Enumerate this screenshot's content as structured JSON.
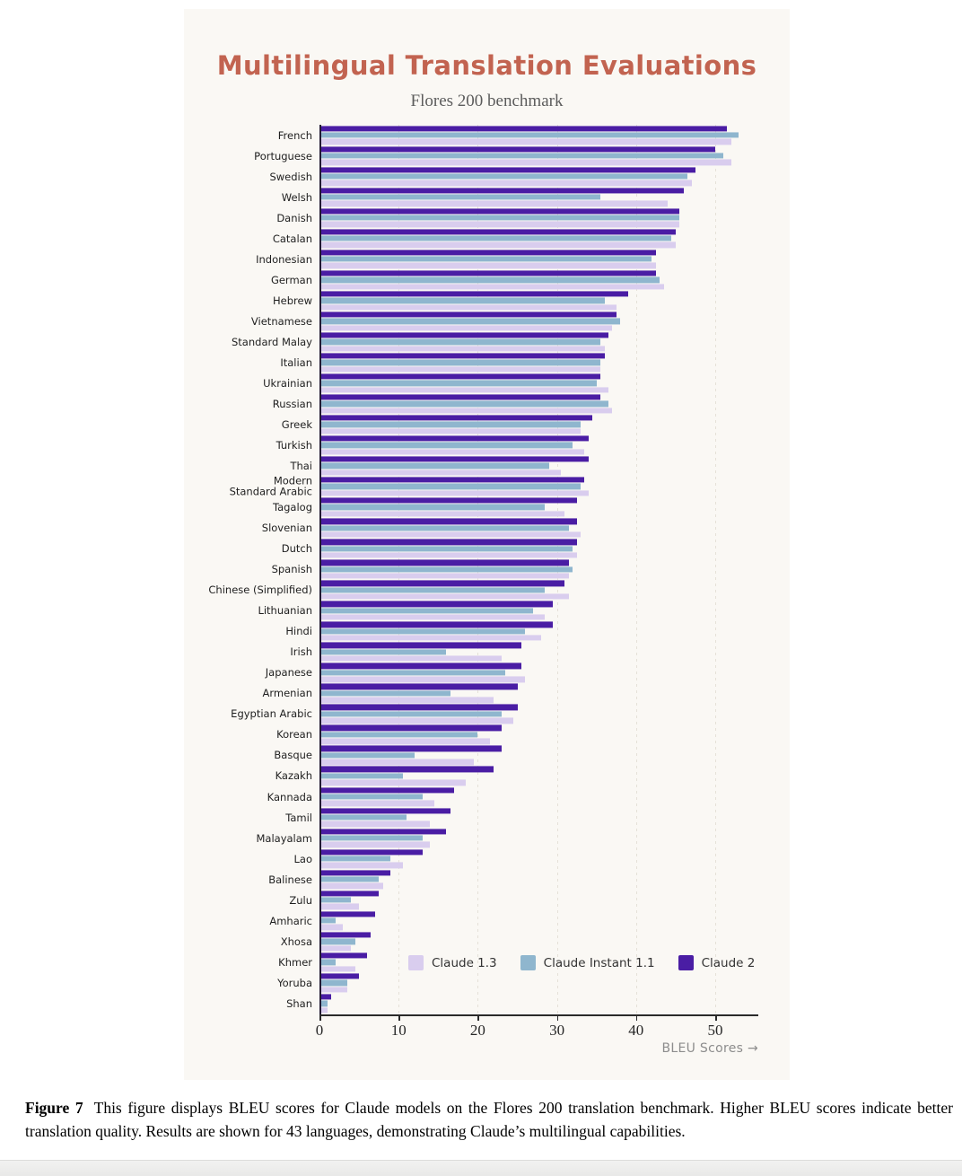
{
  "figure": {
    "title": "Multilingual Translation Evaluations",
    "subtitle": "Flores 200 benchmark",
    "x_axis_title": "BLEU Scores →",
    "legend": [
      {
        "name": "Claude 1.3",
        "color": "#d9cdee"
      },
      {
        "name": "Claude Instant 1.1",
        "color": "#8fb6ce"
      },
      {
        "name": "Claude 2",
        "color": "#4a1da4"
      }
    ],
    "label_overrides": {
      "Modern Standard Arabic": "Modern\nStandard Arabic"
    }
  },
  "chart_data": {
    "type": "bar",
    "orientation": "horizontal",
    "title": "Multilingual Translation Evaluations",
    "subtitle": "Flores 200 benchmark",
    "xlabel": "BLEU Scores",
    "xlim": [
      0,
      55
    ],
    "xticks": [
      0,
      10,
      20,
      30,
      40,
      50
    ],
    "grid": "dashed-vertical",
    "legend_position": "bottom-inside",
    "bar_order_top_to_bottom": [
      "Claude 2",
      "Claude Instant 1.1",
      "Claude 1.3"
    ],
    "categories": [
      "French",
      "Portuguese",
      "Swedish",
      "Welsh",
      "Danish",
      "Catalan",
      "Indonesian",
      "German",
      "Hebrew",
      "Vietnamese",
      "Standard Malay",
      "Italian",
      "Ukrainian",
      "Russian",
      "Greek",
      "Turkish",
      "Thai",
      "Modern Standard Arabic",
      "Tagalog",
      "Slovenian",
      "Dutch",
      "Spanish",
      "Chinese (Simplified)",
      "Lithuanian",
      "Hindi",
      "Irish",
      "Japanese",
      "Armenian",
      "Egyptian Arabic",
      "Korean",
      "Basque",
      "Kazakh",
      "Kannada",
      "Tamil",
      "Malayalam",
      "Lao",
      "Balinese",
      "Zulu",
      "Amharic",
      "Xhosa",
      "Khmer",
      "Yoruba",
      "Shan"
    ],
    "series": [
      {
        "name": "Claude 2",
        "color": "#4a1da4",
        "values": [
          51.5,
          50,
          47.5,
          46,
          45.5,
          45,
          42.5,
          42.5,
          39,
          37.5,
          36.5,
          36,
          35.5,
          35.5,
          34.5,
          34,
          34,
          33.5,
          32.5,
          32.5,
          32.5,
          31.5,
          31,
          29.5,
          29.5,
          25.5,
          25.5,
          25,
          25,
          23,
          23,
          22,
          17,
          16.5,
          16,
          13,
          9,
          7.5,
          7,
          6.5,
          6,
          5,
          1.5
        ]
      },
      {
        "name": "Claude Instant 1.1",
        "color": "#8fb6ce",
        "values": [
          53,
          51,
          46.5,
          35.5,
          45.5,
          44.5,
          42,
          43,
          36,
          38,
          35.5,
          35.5,
          35,
          36.5,
          33,
          32,
          29,
          33,
          28.5,
          31.5,
          32,
          32,
          28.5,
          27,
          26,
          16,
          23.5,
          16.5,
          23,
          20,
          12,
          10.5,
          13,
          11,
          13,
          9,
          7.5,
          4,
          2,
          4.5,
          2,
          3.5,
          1
        ]
      },
      {
        "name": "Claude 1.3",
        "color": "#d9cdee",
        "values": [
          52,
          52,
          47,
          44,
          45.5,
          45,
          42.5,
          43.5,
          37.5,
          37,
          36,
          35.5,
          36.5,
          37,
          33,
          33.5,
          30.5,
          34,
          31,
          33,
          32.5,
          31.5,
          31.5,
          28.5,
          28,
          23,
          26,
          22,
          24.5,
          21.5,
          19.5,
          18.5,
          14.5,
          14,
          14,
          10.5,
          8,
          5,
          3,
          4,
          4.5,
          3.5,
          1
        ]
      }
    ]
  },
  "caption": {
    "label": "Figure 7",
    "text": "This figure displays BLEU scores for Claude models on the Flores 200 translation benchmark. Higher BLEU scores indicate better translation quality. Results are shown for 43 languages, demonstrating Claude’s multilingual capabilities."
  }
}
